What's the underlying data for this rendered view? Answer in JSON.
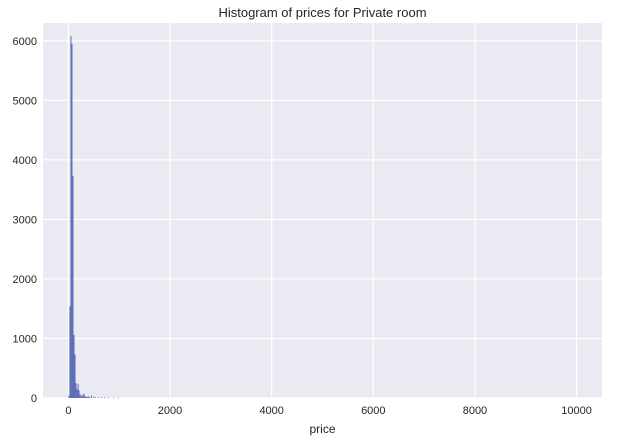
{
  "chart_data": {
    "type": "bar",
    "title": "Histogram of prices for Private room",
    "xlabel": "price",
    "ylabel": "",
    "xlim": [
      -500,
      10500
    ],
    "ylim": [
      0,
      6300
    ],
    "x_ticks": [
      0,
      2000,
      4000,
      6000,
      8000,
      10000
    ],
    "x_tick_labels": [
      "0",
      "2000",
      "4000",
      "6000",
      "8000",
      "10000"
    ],
    "y_ticks": [
      0,
      1000,
      2000,
      3000,
      4000,
      5000,
      6000
    ],
    "y_tick_labels": [
      "0",
      "1000",
      "2000",
      "3000",
      "4000",
      "5000",
      "6000"
    ],
    "grid": true,
    "bin_width": 20,
    "bins": [
      {
        "x": 0,
        "value": 40
      },
      {
        "x": 20,
        "value": 1540
      },
      {
        "x": 40,
        "value": 6080
      },
      {
        "x": 60,
        "value": 5950
      },
      {
        "x": 80,
        "value": 3730
      },
      {
        "x": 100,
        "value": 1060
      },
      {
        "x": 120,
        "value": 730
      },
      {
        "x": 140,
        "value": 250
      },
      {
        "x": 160,
        "value": 150
      },
      {
        "x": 180,
        "value": 240
      },
      {
        "x": 200,
        "value": 130
      },
      {
        "x": 220,
        "value": 60
      },
      {
        "x": 240,
        "value": 40
      },
      {
        "x": 260,
        "value": 30
      },
      {
        "x": 280,
        "value": 70
      },
      {
        "x": 300,
        "value": 60
      },
      {
        "x": 320,
        "value": 30
      },
      {
        "x": 340,
        "value": 20
      },
      {
        "x": 360,
        "value": 15
      },
      {
        "x": 380,
        "value": 30
      },
      {
        "x": 400,
        "value": 15
      },
      {
        "x": 440,
        "value": 40
      },
      {
        "x": 480,
        "value": 20
      },
      {
        "x": 520,
        "value": 15
      },
      {
        "x": 580,
        "value": 12
      },
      {
        "x": 640,
        "value": 10
      },
      {
        "x": 700,
        "value": 12
      },
      {
        "x": 780,
        "value": 8
      },
      {
        "x": 880,
        "value": 6
      },
      {
        "x": 980,
        "value": 6
      }
    ],
    "colors": {
      "bar": "#4c5fb0",
      "plot_background": "#eaeaf2",
      "grid": "#ffffff",
      "text": "#262626"
    }
  }
}
